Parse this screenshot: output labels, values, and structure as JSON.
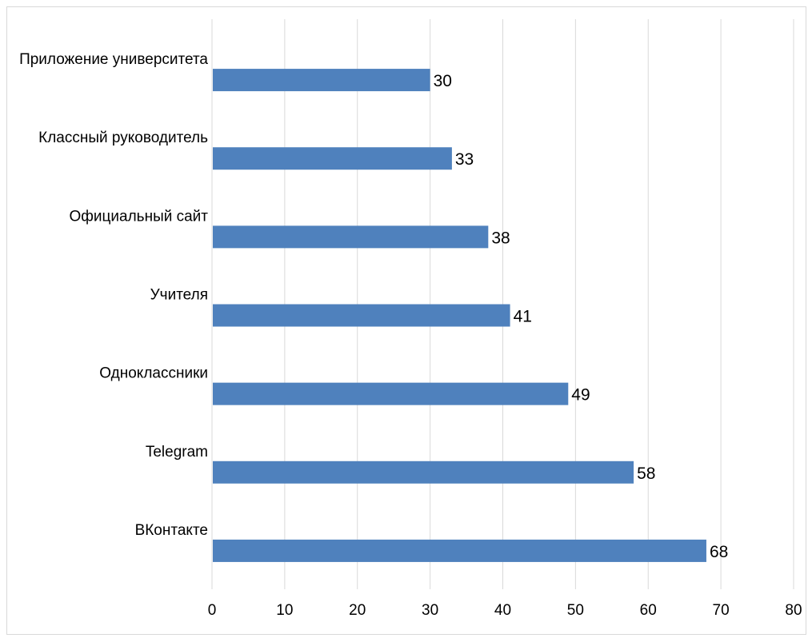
{
  "chart_data": {
    "type": "bar",
    "orientation": "horizontal",
    "categories": [
      "Приложение университета",
      "Классный руководитель",
      "Официальный сайт",
      "Учителя",
      "Одноклассники",
      "Telegram",
      "ВКонтакте"
    ],
    "values": [
      30,
      33,
      38,
      41,
      49,
      58,
      68
    ],
    "xlim": [
      0,
      80
    ],
    "xticks": [
      0,
      10,
      20,
      30,
      40,
      50,
      60,
      70,
      80
    ],
    "grid": true,
    "data_labels": true,
    "bar_color": "#4f81bd",
    "gridline_color": "#d9d9d9"
  }
}
